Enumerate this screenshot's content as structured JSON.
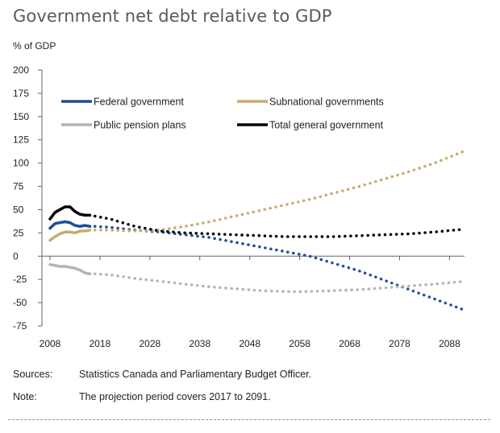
{
  "chart_data": {
    "type": "line",
    "title": "Government net debt relative to GDP",
    "ylabel": "% of GDP",
    "xlabel": "",
    "xlim": [
      2008,
      2091
    ],
    "ylim": [
      -75,
      200
    ],
    "x_ticks": [
      "2008",
      "2018",
      "2028",
      "2038",
      "2048",
      "2058",
      "2068",
      "2078",
      "2088"
    ],
    "y_ticks": [
      "200",
      "175",
      "150",
      "125",
      "100",
      "75",
      "50",
      "25",
      "0",
      "-25",
      "-50",
      "-75"
    ],
    "projection_start": 2017,
    "legend": [
      "Federal government",
      "Subnational governments",
      "Public pension plans",
      "Total general government"
    ],
    "series": [
      {
        "name": "Federal government",
        "color": "#1f4e96",
        "historical": {
          "x": [
            2008,
            2009,
            2010,
            2011,
            2012,
            2013,
            2014,
            2015,
            2016
          ],
          "y": [
            30,
            35,
            36,
            37,
            36,
            33,
            32,
            33,
            32
          ]
        },
        "projection": {
          "x": [
            2017,
            2020,
            2025,
            2030,
            2035,
            2040,
            2045,
            2050,
            2055,
            2060,
            2065,
            2070,
            2075,
            2080,
            2085,
            2091
          ],
          "y": [
            32,
            31,
            28,
            26,
            23,
            20,
            15,
            10,
            5,
            0,
            -8,
            -16,
            -26,
            -36,
            -46,
            -58
          ]
        }
      },
      {
        "name": "Subnational governments",
        "color": "#c8ac6c",
        "historical": {
          "x": [
            2008,
            2009,
            2010,
            2011,
            2012,
            2013,
            2014,
            2015,
            2016
          ],
          "y": [
            17,
            21,
            24,
            26,
            26,
            25,
            27,
            27,
            28
          ]
        },
        "projection": {
          "x": [
            2017,
            2020,
            2025,
            2030,
            2035,
            2040,
            2045,
            2050,
            2055,
            2060,
            2065,
            2070,
            2075,
            2080,
            2085,
            2091
          ],
          "y": [
            28,
            28,
            27,
            28,
            32,
            37,
            43,
            49,
            55,
            61,
            68,
            75,
            83,
            91,
            100,
            113
          ]
        }
      },
      {
        "name": "Public pension plans",
        "color": "#b4b4b4",
        "historical": {
          "x": [
            2008,
            2009,
            2010,
            2011,
            2012,
            2013,
            2014,
            2015,
            2016
          ],
          "y": [
            -9,
            -10,
            -11,
            -11,
            -12,
            -13,
            -15,
            -18,
            -19
          ]
        },
        "projection": {
          "x": [
            2017,
            2020,
            2025,
            2030,
            2035,
            2040,
            2045,
            2050,
            2055,
            2060,
            2065,
            2070,
            2075,
            2080,
            2085,
            2091
          ],
          "y": [
            -19,
            -20,
            -24,
            -27,
            -30,
            -33,
            -35,
            -37,
            -38,
            -38,
            -37,
            -36,
            -34,
            -32,
            -30,
            -27
          ]
        }
      },
      {
        "name": "Total general government",
        "color": "#000000",
        "historical": {
          "x": [
            2008,
            2009,
            2010,
            2011,
            2012,
            2013,
            2014,
            2015,
            2016
          ],
          "y": [
            40,
            47,
            50,
            53,
            53,
            48,
            45,
            44,
            44
          ]
        },
        "projection": {
          "x": [
            2017,
            2020,
            2025,
            2030,
            2035,
            2040,
            2045,
            2050,
            2055,
            2060,
            2065,
            2070,
            2075,
            2080,
            2085,
            2091
          ],
          "y": [
            43,
            40,
            32,
            27,
            25,
            24,
            23,
            22,
            21,
            21,
            21,
            22,
            23,
            24,
            26,
            29
          ]
        }
      }
    ]
  },
  "footer": {
    "sources_label": "Sources:",
    "sources_text": "Statistics Canada and Parliamentary Budget Officer.",
    "note_label": "Note:",
    "note_text": "The projection period covers 2017 to 2091."
  }
}
